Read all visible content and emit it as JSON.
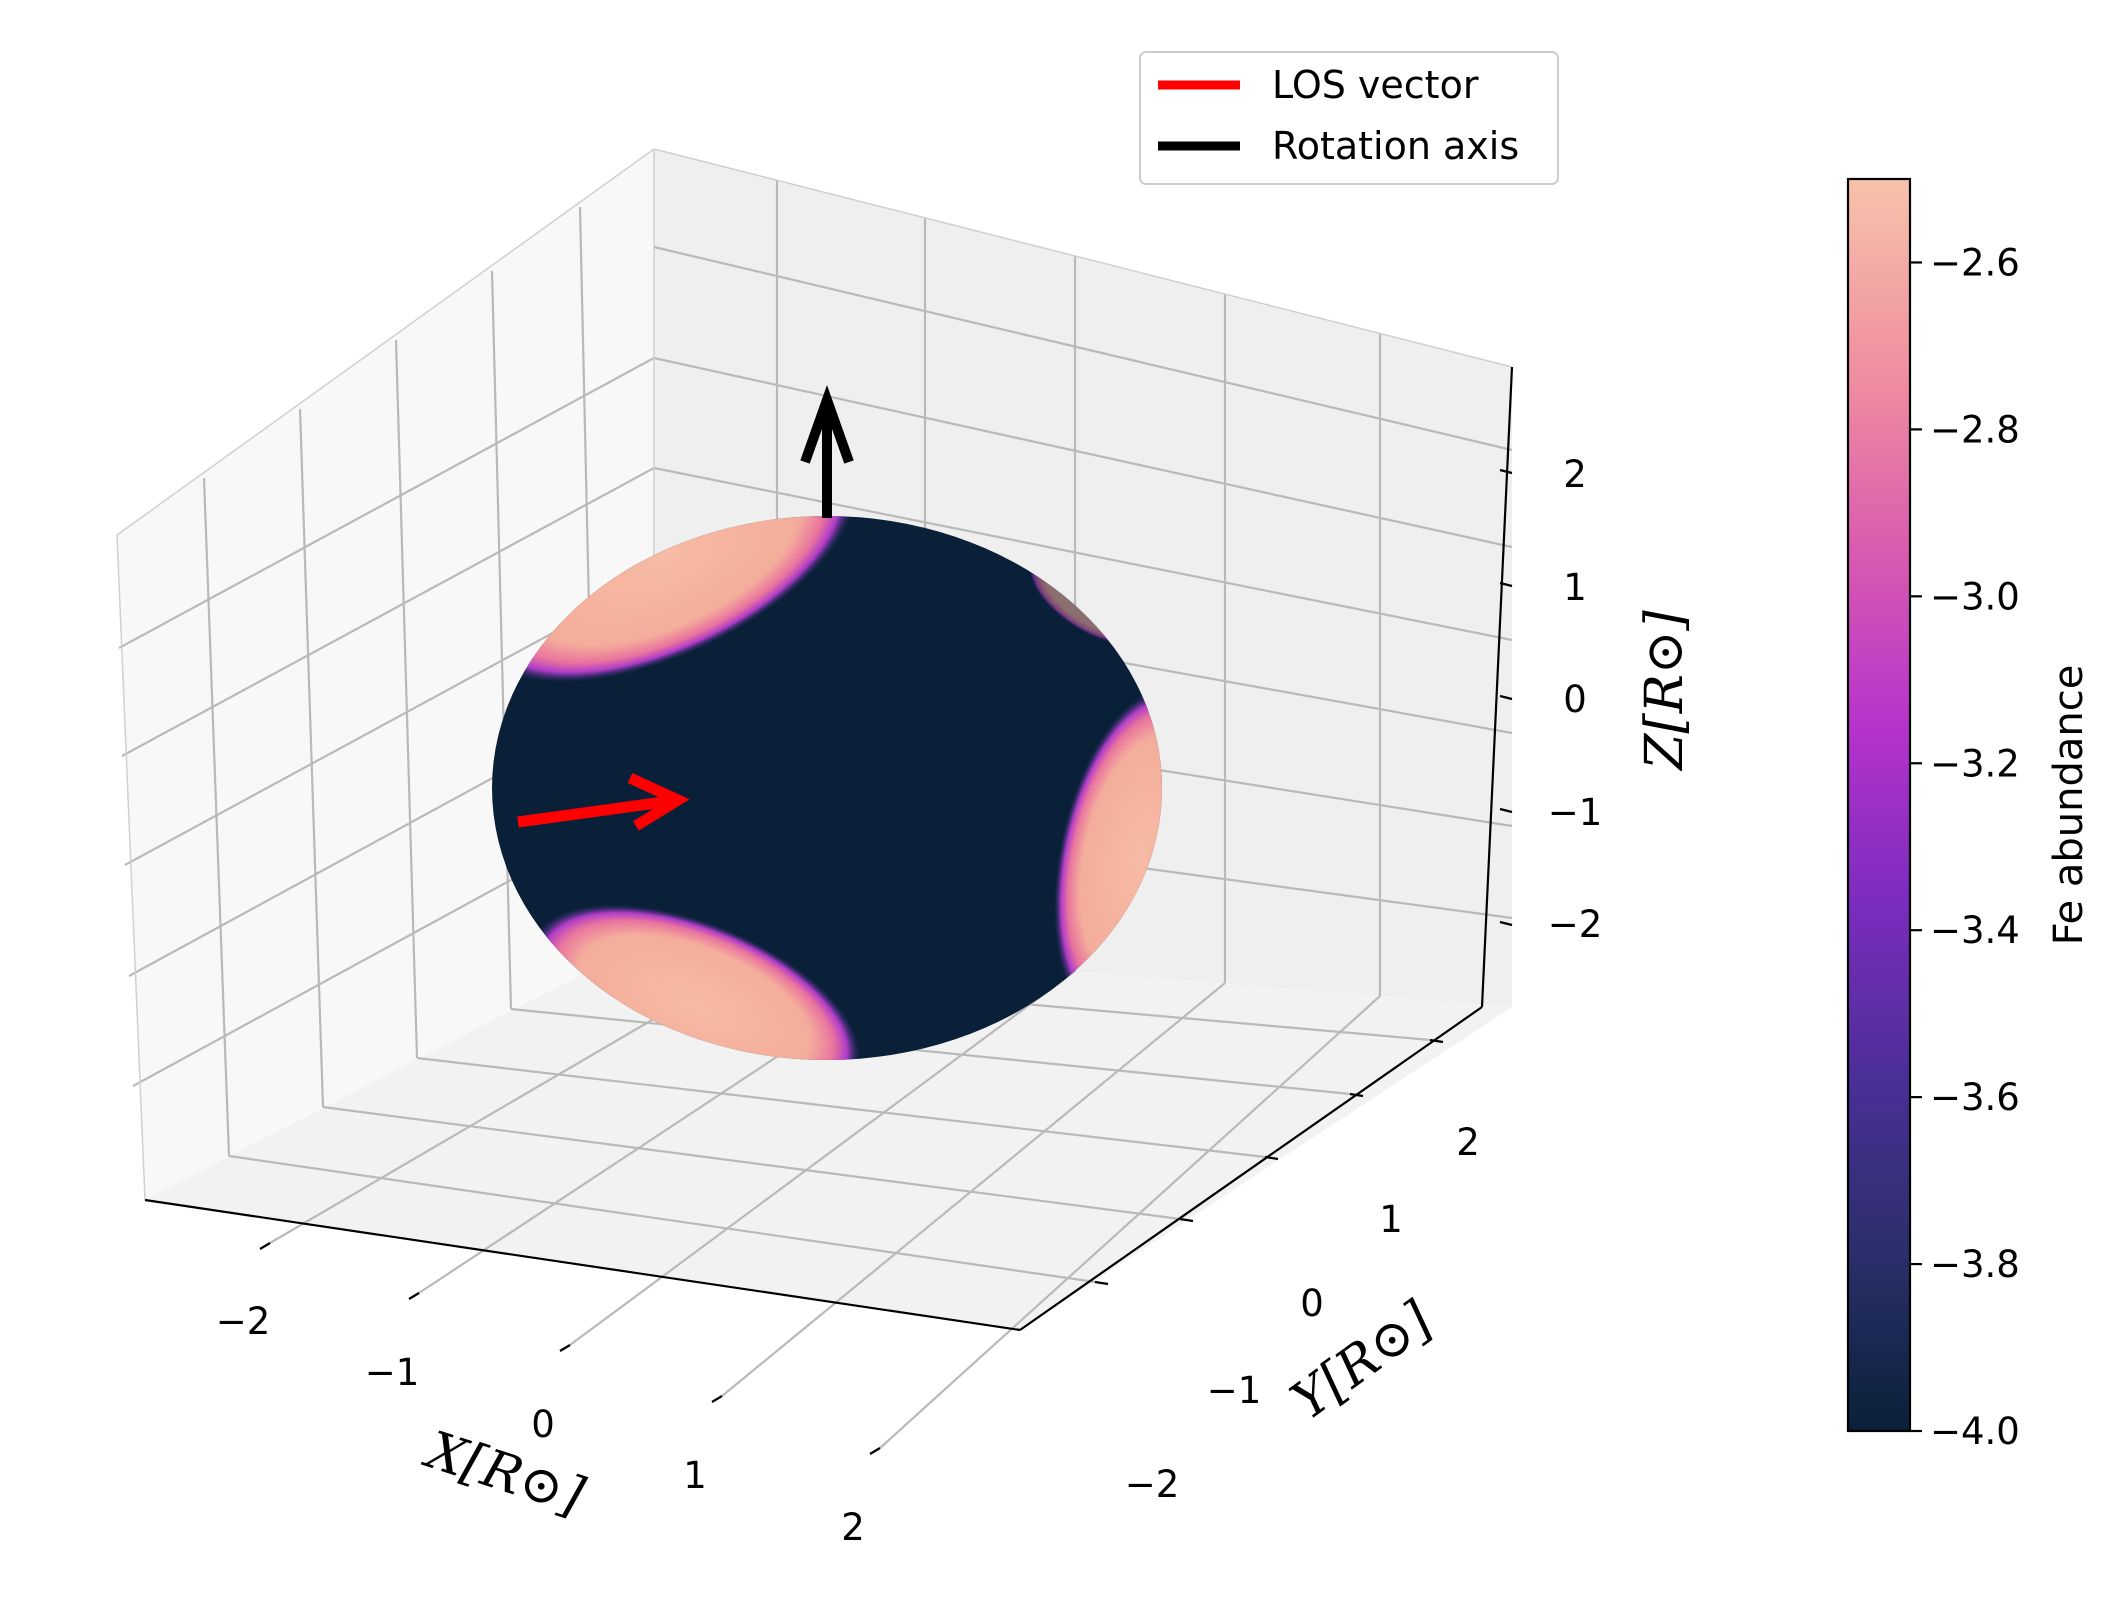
{
  "chart_data": {
    "type": "3d-surface",
    "title": "",
    "axes": {
      "x": {
        "label": "X[R⊙]",
        "ticks": [
          -2,
          -1,
          0,
          1,
          2
        ],
        "tick_labels": [
          "−2",
          "−1",
          "0",
          "1",
          "2"
        ],
        "range": [
          -2.6,
          2.6
        ]
      },
      "y": {
        "label": "Y[R⊙]",
        "ticks": [
          -2,
          -1,
          0,
          1,
          2
        ],
        "tick_labels": [
          "−2",
          "−1",
          "0",
          "1",
          "2"
        ],
        "range": [
          -2.6,
          2.6
        ]
      },
      "z": {
        "label": "Z[R⊙]",
        "ticks": [
          -2,
          -1,
          0,
          1,
          2
        ],
        "tick_labels": [
          "−2",
          "−1",
          "0",
          "1",
          "2"
        ],
        "range": [
          -2.6,
          2.6
        ]
      }
    },
    "grid": true,
    "surface": {
      "shape": "sphere",
      "radius": 2.0,
      "color_variable": "Fe abundance",
      "base_value": -4.0,
      "spot_value": -2.5,
      "spots": [
        "upper-left",
        "lower-left",
        "right",
        "upper-right-limb"
      ]
    },
    "vectors": [
      {
        "name": "LOS vector",
        "color": "#ff0000"
      },
      {
        "name": "Rotation axis",
        "color": "#000000"
      }
    ],
    "legend": {
      "placement": "top-right",
      "entries": [
        {
          "label": "LOS vector",
          "color": "#ff0000"
        },
        {
          "label": "Rotation axis",
          "color": "#000000"
        }
      ]
    },
    "colorbar": {
      "label": "Fe abundance",
      "range": [
        -4.0,
        -2.5
      ],
      "ticks": [
        -4.0,
        -3.8,
        -3.6,
        -3.4,
        -3.2,
        -3.0,
        -2.8,
        -2.6
      ],
      "tick_labels": [
        "−4.0",
        "−3.8",
        "−3.6",
        "−3.4",
        "−3.2",
        "−3.0",
        "−2.8",
        "−2.6"
      ],
      "colormap": [
        "#0a2038",
        "#2a2f6a",
        "#5b2fa8",
        "#a52fcc",
        "#d14fb6",
        "#ec82a0",
        "#f6b09e",
        "#f7c3aa"
      ]
    },
    "colors": {
      "background": "#ffffff",
      "pane": "#f2f2f2",
      "grid": "#b0b0b0",
      "surface_base": "#0a2038",
      "spot": "#f4b4a0"
    }
  }
}
